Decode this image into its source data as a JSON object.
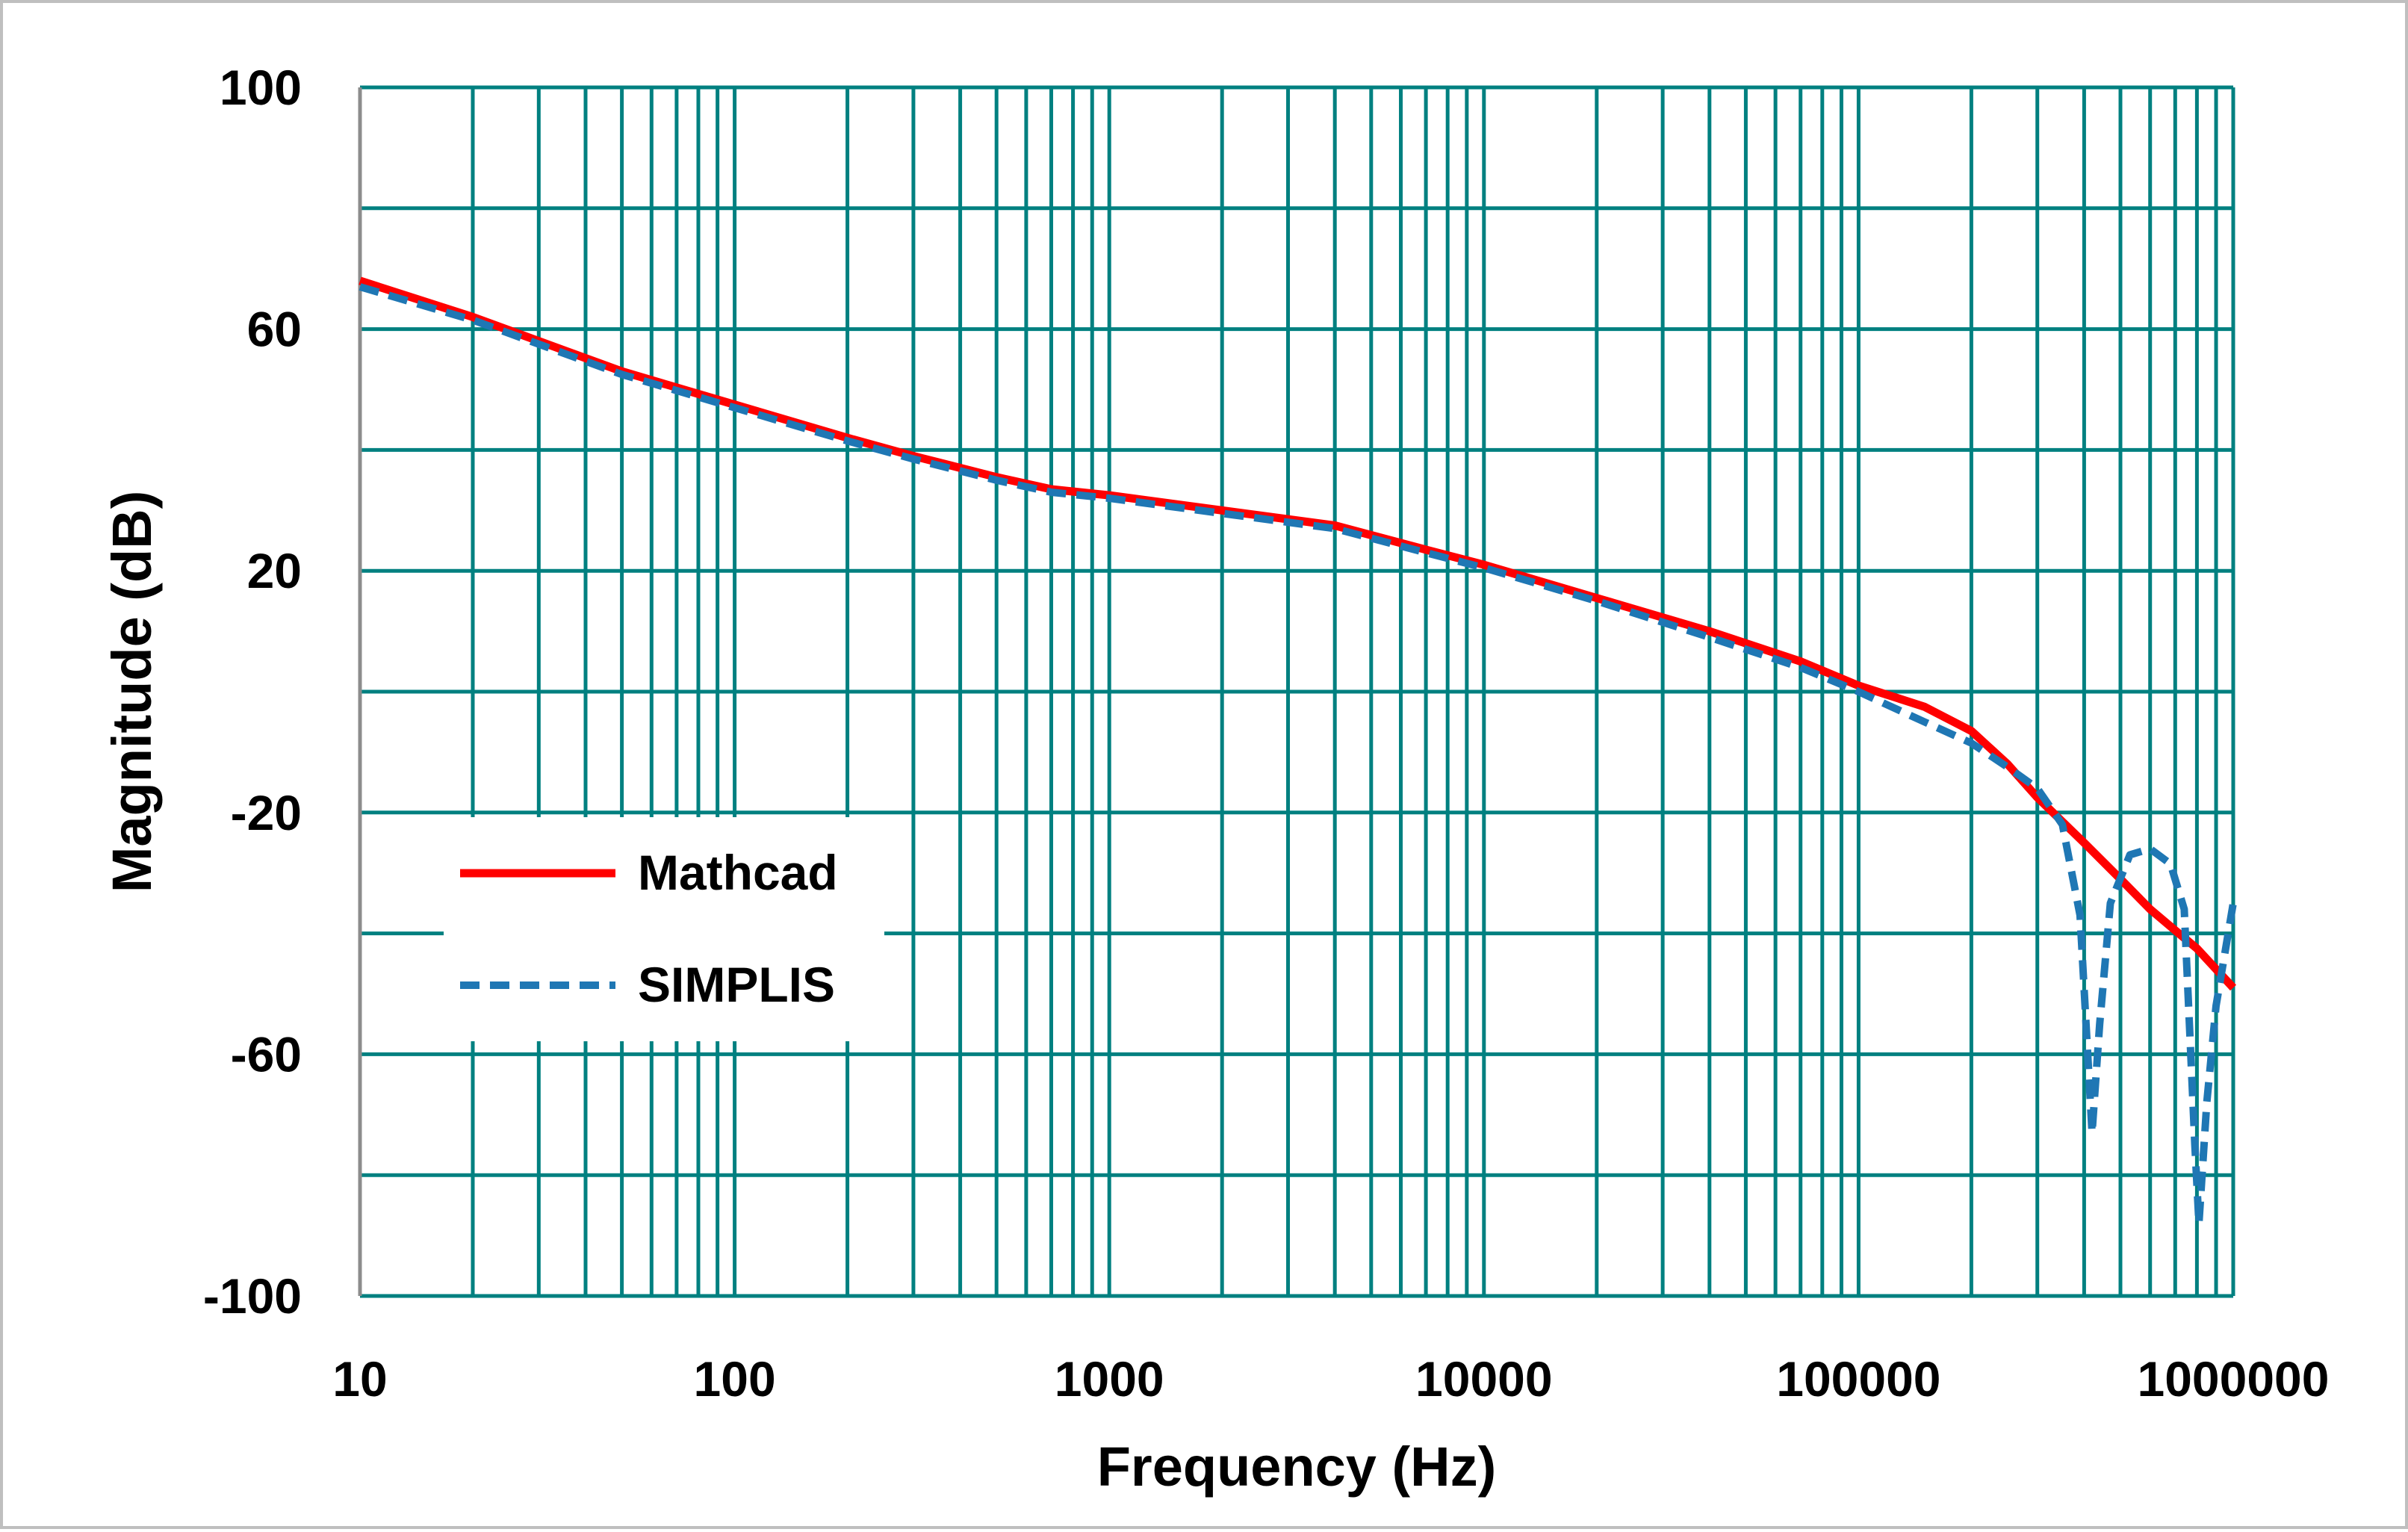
{
  "chart_data": {
    "type": "line",
    "title": "",
    "xlabel": "Frequency (Hz)",
    "ylabel": "Magnitude (dB)",
    "xscale": "log",
    "xlim": [
      10,
      1000000
    ],
    "ylim": [
      -100,
      100
    ],
    "x_ticks": [
      "10",
      "100",
      "1000",
      "10000",
      "100000",
      "1000000"
    ],
    "y_ticks": [
      "100",
      "60",
      "20",
      "-20",
      "-60",
      "-100"
    ],
    "y_tick_values": [
      100,
      60,
      20,
      -20,
      -60,
      -100
    ],
    "y_grid_values": [
      100,
      80,
      60,
      40,
      20,
      0,
      -20,
      -40,
      -60,
      -80,
      -100
    ],
    "grid": true,
    "grid_color": "#008080",
    "legend_position": "left-lower",
    "series": [
      {
        "name": "Mathcad",
        "color": "#ff0000",
        "style": "solid",
        "points": [
          [
            10,
            68
          ],
          [
            20,
            62
          ],
          [
            50,
            53
          ],
          [
            100,
            47.5
          ],
          [
            200,
            42
          ],
          [
            300,
            39
          ],
          [
            500,
            35.5
          ],
          [
            700,
            33.5
          ],
          [
            1000,
            32.5
          ],
          [
            2000,
            30
          ],
          [
            4000,
            27.5
          ],
          [
            7000,
            23.5
          ],
          [
            10000,
            21
          ],
          [
            20000,
            15.5
          ],
          [
            40000,
            10
          ],
          [
            70000,
            5
          ],
          [
            100000,
            1
          ],
          [
            150000,
            -2.5
          ],
          [
            200000,
            -6.5
          ],
          [
            250000,
            -12
          ],
          [
            300000,
            -17.5
          ],
          [
            400000,
            -25
          ],
          [
            500000,
            -31
          ],
          [
            600000,
            -36
          ],
          [
            700000,
            -39.5
          ],
          [
            800000,
            -42.5
          ],
          [
            1000000,
            -49
          ]
        ]
      },
      {
        "name": "SIMPLIS",
        "color": "#1f77b4",
        "style": "dashed",
        "points": [
          [
            10,
            67
          ],
          [
            20,
            61.5
          ],
          [
            50,
            52.5
          ],
          [
            100,
            47
          ],
          [
            200,
            41.5
          ],
          [
            300,
            38.5
          ],
          [
            500,
            35
          ],
          [
            700,
            33
          ],
          [
            1000,
            32
          ],
          [
            2000,
            29.5
          ],
          [
            4000,
            27
          ],
          [
            7000,
            23
          ],
          [
            10000,
            20.5
          ],
          [
            20000,
            15
          ],
          [
            40000,
            9
          ],
          [
            70000,
            4
          ],
          [
            100000,
            0
          ],
          [
            150000,
            -5
          ],
          [
            200000,
            -8.5
          ],
          [
            250000,
            -12.5
          ],
          [
            300000,
            -16
          ],
          [
            350000,
            -22
          ],
          [
            390000,
            -37
          ],
          [
            420000,
            -73
          ],
          [
            440000,
            -55
          ],
          [
            470000,
            -35
          ],
          [
            530000,
            -27
          ],
          [
            600000,
            -26
          ],
          [
            680000,
            -28.5
          ],
          [
            740000,
            -36
          ],
          [
            790000,
            -75
          ],
          [
            810000,
            -88
          ],
          [
            850000,
            -68
          ],
          [
            900000,
            -52
          ],
          [
            1000000,
            -35
          ]
        ]
      }
    ]
  }
}
